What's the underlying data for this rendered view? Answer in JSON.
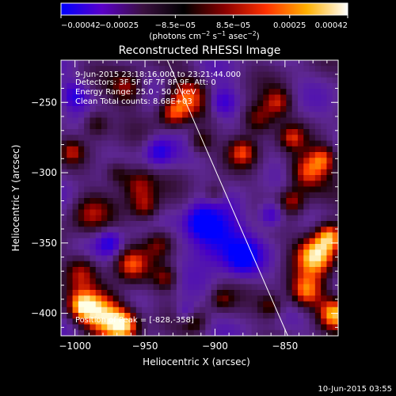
{
  "chart_data": {
    "type": "heatmap",
    "title": "Reconstructed RHESSI Image",
    "xlabel": "Heliocentric X (arcsec)",
    "ylabel": "Heliocentric Y (arcsec)",
    "xlim": [
      -1010,
      -812
    ],
    "ylim": [
      -416,
      -220
    ],
    "x_ticks": [
      -1000,
      -950,
      -900,
      -850
    ],
    "x_tick_labels": [
      "−1000",
      "−950",
      "−900",
      "−850"
    ],
    "y_ticks": [
      -250,
      -300,
      -350,
      -400
    ],
    "y_tick_labels": [
      "−250",
      "−300",
      "−350",
      "−400"
    ],
    "colorbar": {
      "range": [
        -0.00042,
        0.00042
      ],
      "ticks": [
        -0.00042,
        -0.00025,
        -8.5e-05,
        8.5e-05,
        0.00025,
        0.00042
      ],
      "tick_labels": [
        "−0.00042",
        "−0.00025",
        "−8.5e−05",
        "8.5e−05",
        "0.00025",
        "0.00042"
      ],
      "unit_main": "(photons cm",
      "unit_sup1": "−2",
      "unit_mid": " s",
      "unit_sup2": "−1",
      "unit_mid2": " asec",
      "unit_sup3": "−2",
      "unit_end": ")",
      "colors": [
        "#0000ff",
        "#5a00c8",
        "#3a1040",
        "#000000",
        "#8a0000",
        "#ff3000",
        "#ffb000",
        "#ffffff"
      ]
    },
    "annotations": {
      "time_range": "9-Jun-2015 23:18:16.000 to 23:21:44.000",
      "detectors": "Detectors: 3F 5F 6F 7F 8F 9F, Att: 0",
      "energy": "Energy Range: 25.0 - 50.0 keV",
      "clean": "Clean     Total counts: 8.68E+03",
      "peak": "Position of Peak = [-828,-358]"
    },
    "limb": [
      {
        "x": -934,
        "y": -220
      },
      {
        "x": -848,
        "y": -416
      }
    ],
    "hot_regions": [
      {
        "x": -920,
        "y": -245,
        "r": 14,
        "v": 0.6
      },
      {
        "x": -930,
        "y": -258,
        "r": 10,
        "v": 0.55
      },
      {
        "x": -962,
        "y": -240,
        "r": 12,
        "v": 0.5
      },
      {
        "x": -910,
        "y": -278,
        "r": 9,
        "v": 0.45
      },
      {
        "x": -955,
        "y": -308,
        "r": 12,
        "v": 0.55
      },
      {
        "x": -950,
        "y": -325,
        "r": 10,
        "v": 0.5
      },
      {
        "x": -970,
        "y": -300,
        "r": 9,
        "v": 0.4
      },
      {
        "x": -940,
        "y": -350,
        "r": 11,
        "v": 0.5
      },
      {
        "x": -960,
        "y": -365,
        "r": 12,
        "v": 0.55
      },
      {
        "x": -935,
        "y": -375,
        "r": 9,
        "v": 0.45
      },
      {
        "x": -990,
        "y": -330,
        "r": 14,
        "v": 0.45
      },
      {
        "x": -995,
        "y": -370,
        "r": 12,
        "v": 0.5
      },
      {
        "x": -980,
        "y": -400,
        "r": 16,
        "v": 0.95
      },
      {
        "x": -965,
        "y": -408,
        "r": 11,
        "v": 0.85
      },
      {
        "x": -995,
        "y": -395,
        "r": 10,
        "v": 0.7
      },
      {
        "x": -870,
        "y": -262,
        "r": 12,
        "v": 0.6
      },
      {
        "x": -855,
        "y": -250,
        "r": 10,
        "v": 0.5
      },
      {
        "x": -880,
        "y": -285,
        "r": 10,
        "v": 0.55
      },
      {
        "x": -845,
        "y": -275,
        "r": 9,
        "v": 0.45
      },
      {
        "x": -835,
        "y": -300,
        "r": 13,
        "v": 0.7
      },
      {
        "x": -822,
        "y": -290,
        "r": 10,
        "v": 0.6
      },
      {
        "x": -845,
        "y": -320,
        "r": 9,
        "v": 0.5
      },
      {
        "x": -828,
        "y": -358,
        "r": 14,
        "v": 1.0
      },
      {
        "x": -818,
        "y": -345,
        "r": 10,
        "v": 0.85
      },
      {
        "x": -835,
        "y": -385,
        "r": 12,
        "v": 0.75
      },
      {
        "x": -815,
        "y": -400,
        "r": 11,
        "v": 0.8
      },
      {
        "x": -860,
        "y": -395,
        "r": 9,
        "v": 0.45
      },
      {
        "x": -900,
        "y": -315,
        "r": 8,
        "v": 0.35
      },
      {
        "x": -895,
        "y": -390,
        "r": 8,
        "v": 0.35
      },
      {
        "x": -985,
        "y": -265,
        "r": 10,
        "v": 0.45
      },
      {
        "x": -1002,
        "y": -285,
        "r": 8,
        "v": 0.4
      },
      {
        "x": -915,
        "y": -405,
        "r": 9,
        "v": 0.4
      }
    ],
    "cold_regions": [
      {
        "x": -900,
        "y": -345,
        "r": 18,
        "v": -0.8
      },
      {
        "x": -880,
        "y": -360,
        "r": 12,
        "v": -0.7
      },
      {
        "x": -910,
        "y": -335,
        "r": 10,
        "v": -0.65
      },
      {
        "x": -895,
        "y": -250,
        "r": 10,
        "v": -0.5
      },
      {
        "x": -940,
        "y": -285,
        "r": 10,
        "v": -0.55
      },
      {
        "x": -975,
        "y": -350,
        "r": 9,
        "v": -0.5
      },
      {
        "x": -860,
        "y": -330,
        "r": 9,
        "v": -0.55
      },
      {
        "x": -1000,
        "y": -245,
        "r": 9,
        "v": -0.5
      },
      {
        "x": -920,
        "y": -400,
        "r": 8,
        "v": -0.45
      }
    ],
    "footer_timestamp": "10-Jun-2015 03:55"
  }
}
